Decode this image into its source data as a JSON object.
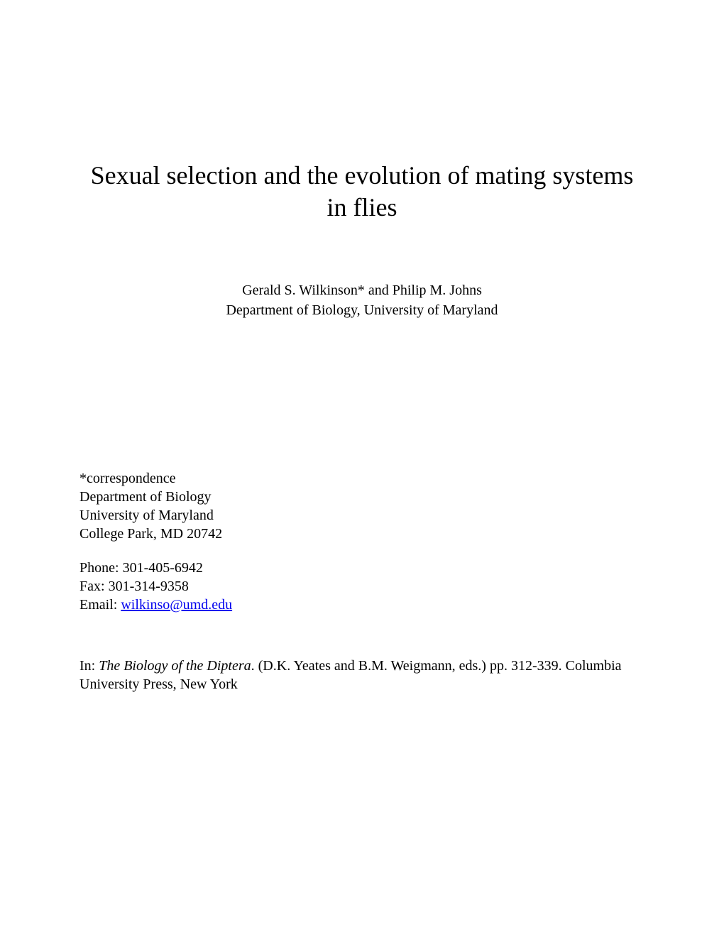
{
  "title": "Sexual selection and the evolution of mating systems in flies",
  "authors_line1": "Gerald S. Wilkinson* and Philip M. Johns",
  "authors_line2": "Department of Biology, University of Maryland",
  "correspondence": {
    "label": "*correspondence",
    "dept": "Department of Biology",
    "university": "University of Maryland",
    "address": "College Park, MD  20742"
  },
  "contact": {
    "phone_label": "Phone: ",
    "phone": "301-405-6942",
    "fax_label": "Fax: ",
    "fax": "301-314-9358",
    "email_label": "Email: ",
    "email": "wilkinso@umd.edu"
  },
  "publication": {
    "prefix": "In: ",
    "book_title": "The Biology of the Diptera",
    "suffix": ". (D.K. Yeates and B.M. Weigmann, eds.) pp. 312-339. Columbia University Press, New York"
  }
}
